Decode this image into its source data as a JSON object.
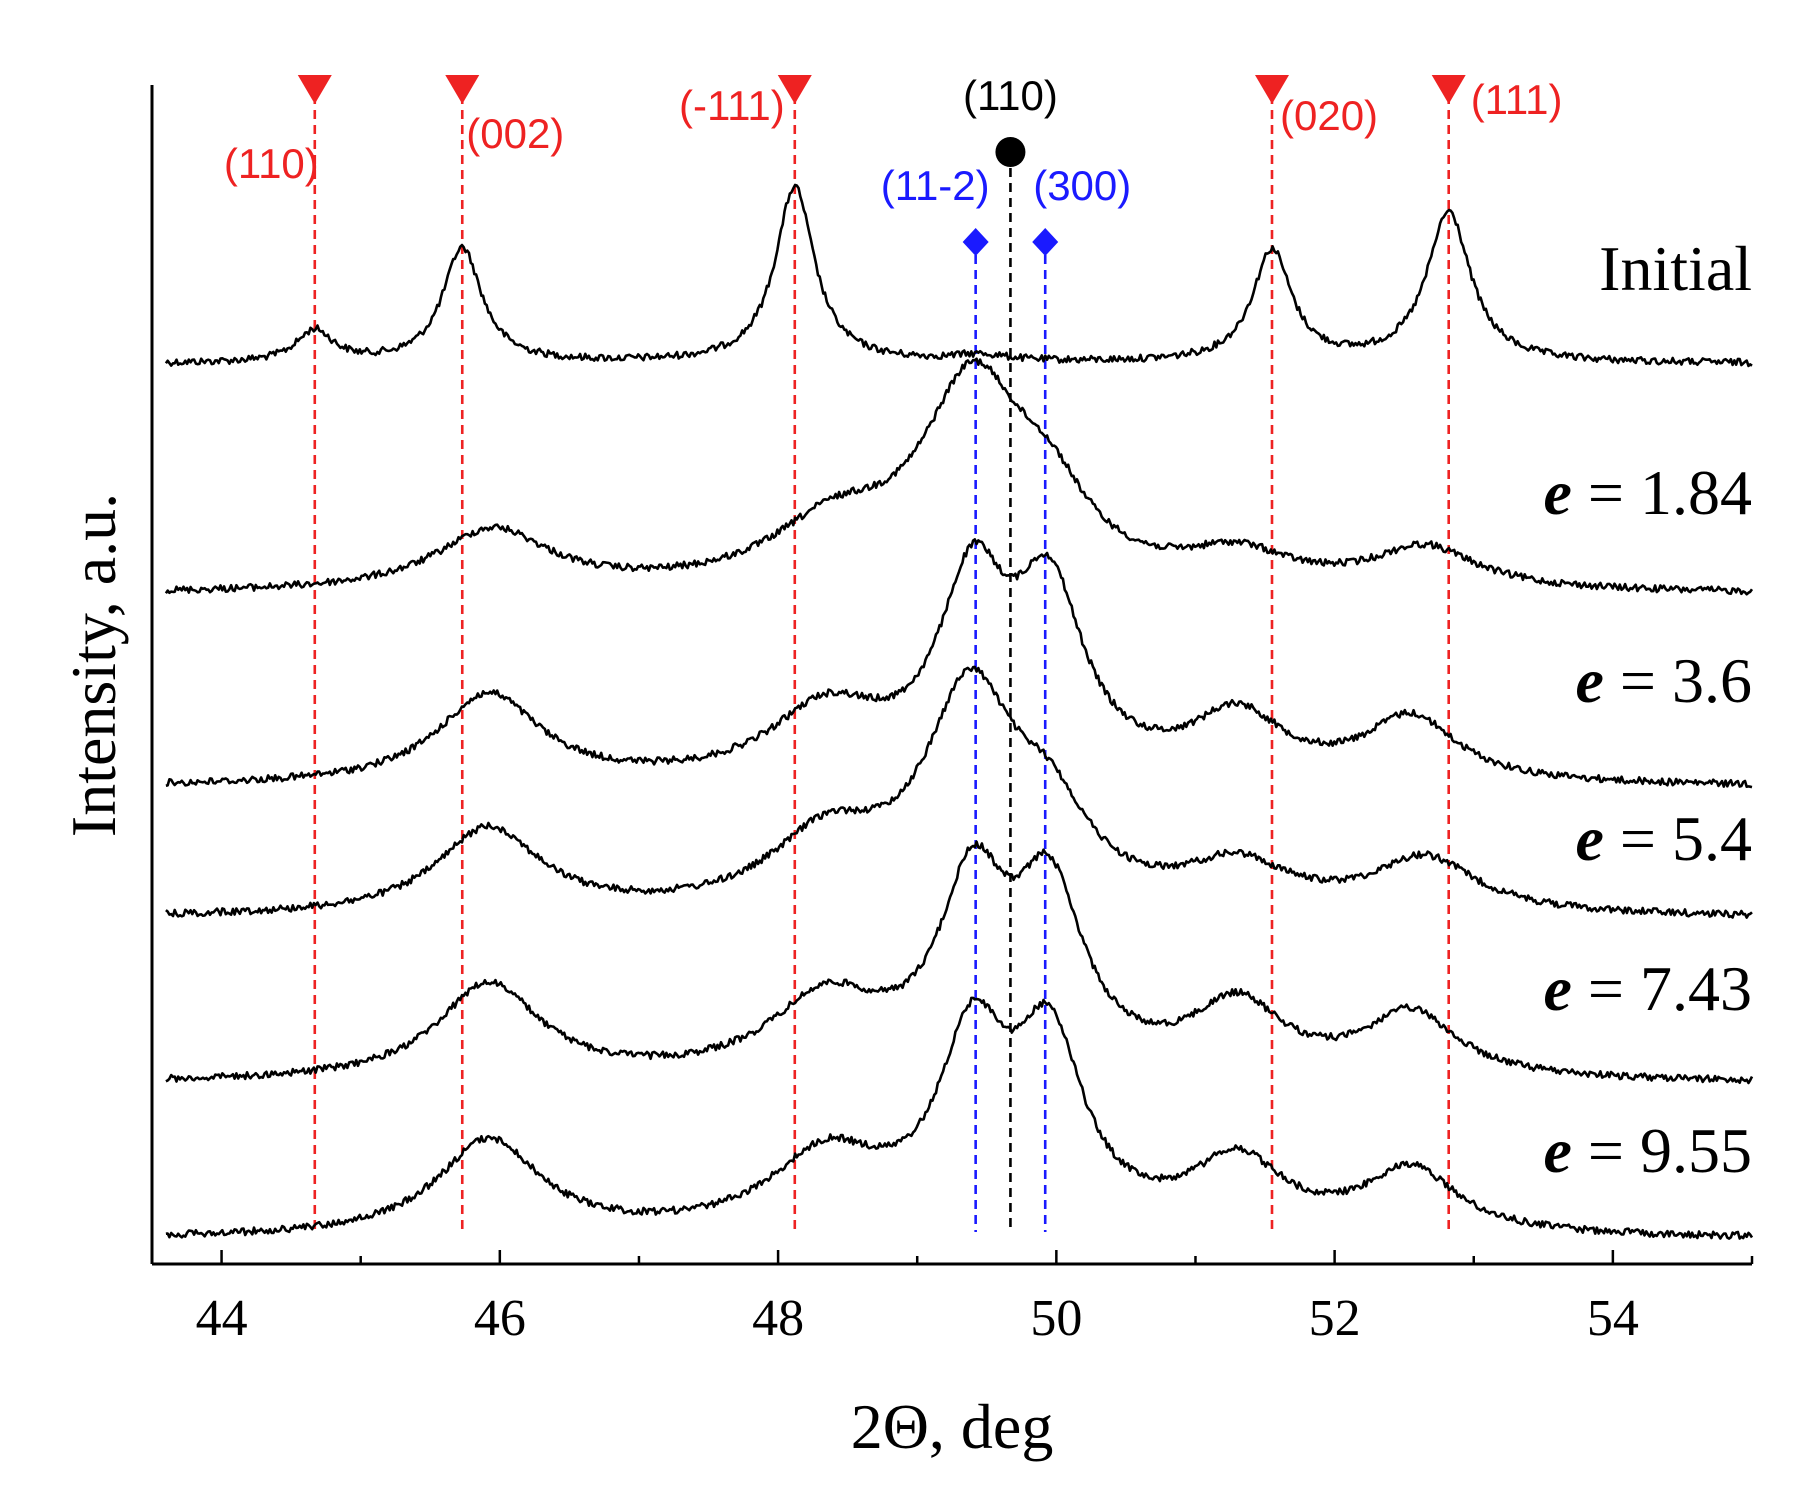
{
  "chart_data": {
    "type": "line",
    "xlabel": "2Θ, deg",
    "ylabel": "Intensity, a.u.",
    "xlim": [
      43.5,
      55.0
    ],
    "x_ticks": [
      44,
      46,
      48,
      50,
      52,
      54
    ],
    "minor_step": 1,
    "series": [
      {
        "name": "Initial",
        "name_parts": [
          "",
          "Initial"
        ],
        "baseline": 0,
        "profile": {
          "background": 0.0,
          "peaks": [
            {
              "pos": 44.67,
              "amp": 0.1,
              "width": 0.16
            },
            {
              "pos": 45.73,
              "amp": 0.36,
              "width": 0.17
            },
            {
              "pos": 48.12,
              "amp": 0.55,
              "width": 0.17
            },
            {
              "pos": 49.45,
              "amp": 0.02,
              "width": 0.25
            },
            {
              "pos": 51.55,
              "amp": 0.35,
              "width": 0.17
            },
            {
              "pos": 52.82,
              "amp": 0.47,
              "width": 0.19
            }
          ]
        }
      },
      {
        "name": "e = 1.84",
        "name_parts": [
          "e",
          " = 1.84"
        ],
        "baseline": 1,
        "profile": {
          "background": 0.0,
          "peaks": [
            {
              "pos": 45.95,
              "amp": 0.19,
              "width": 0.5
            },
            {
              "pos": 48.4,
              "amp": 0.18,
              "width": 0.55
            },
            {
              "pos": 49.4,
              "amp": 0.62,
              "width": 0.45
            },
            {
              "pos": 49.95,
              "amp": 0.2,
              "width": 0.35
            },
            {
              "pos": 51.3,
              "amp": 0.1,
              "width": 0.45
            },
            {
              "pos": 52.65,
              "amp": 0.13,
              "width": 0.45
            }
          ]
        }
      },
      {
        "name": "e = 3.6",
        "name_parts": [
          "e",
          " = 3.6"
        ],
        "baseline": 2,
        "profile": {
          "background": 0.0,
          "peaks": [
            {
              "pos": 45.92,
              "amp": 0.28,
              "width": 0.45
            },
            {
              "pos": 48.35,
              "amp": 0.22,
              "width": 0.5
            },
            {
              "pos": 49.4,
              "amp": 0.58,
              "width": 0.3
            },
            {
              "pos": 49.95,
              "amp": 0.55,
              "width": 0.3
            },
            {
              "pos": 51.3,
              "amp": 0.2,
              "width": 0.4
            },
            {
              "pos": 52.55,
              "amp": 0.2,
              "width": 0.4
            }
          ]
        }
      },
      {
        "name": "e = 5.4",
        "name_parts": [
          "e",
          " = 5.4"
        ],
        "baseline": 3,
        "profile": {
          "background": 0.0,
          "peaks": [
            {
              "pos": 45.92,
              "amp": 0.27,
              "width": 0.45
            },
            {
              "pos": 48.35,
              "amp": 0.22,
              "width": 0.5
            },
            {
              "pos": 49.38,
              "amp": 0.66,
              "width": 0.4
            },
            {
              "pos": 49.95,
              "amp": 0.24,
              "width": 0.35
            },
            {
              "pos": 51.3,
              "amp": 0.14,
              "width": 0.45
            },
            {
              "pos": 52.65,
              "amp": 0.17,
              "width": 0.45
            }
          ]
        }
      },
      {
        "name": "e = 7.43",
        "name_parts": [
          "e",
          " = 7.43"
        ],
        "baseline": 4,
        "profile": {
          "background": 0.0,
          "peaks": [
            {
              "pos": 45.92,
              "amp": 0.3,
              "width": 0.45
            },
            {
              "pos": 48.35,
              "amp": 0.24,
              "width": 0.5
            },
            {
              "pos": 49.4,
              "amp": 0.56,
              "width": 0.3
            },
            {
              "pos": 49.95,
              "amp": 0.54,
              "width": 0.3
            },
            {
              "pos": 51.3,
              "amp": 0.22,
              "width": 0.4
            },
            {
              "pos": 52.55,
              "amp": 0.2,
              "width": 0.4
            }
          ]
        }
      },
      {
        "name": "e = 9.55",
        "name_parts": [
          "e",
          " = 9.55"
        ],
        "baseline": 5,
        "profile": {
          "background": 0.0,
          "peaks": [
            {
              "pos": 45.92,
              "amp": 0.3,
              "width": 0.45
            },
            {
              "pos": 48.35,
              "amp": 0.24,
              "width": 0.5
            },
            {
              "pos": 49.4,
              "amp": 0.56,
              "width": 0.3
            },
            {
              "pos": 49.95,
              "amp": 0.56,
              "width": 0.3
            },
            {
              "pos": 51.3,
              "amp": 0.22,
              "width": 0.4
            },
            {
              "pos": 52.55,
              "amp": 0.2,
              "width": 0.4
            }
          ]
        }
      }
    ],
    "reference_peaks": [
      {
        "x": 44.67,
        "label": "(110)",
        "phase": "red"
      },
      {
        "x": 45.73,
        "label": "(002)",
        "phase": "red"
      },
      {
        "x": 48.12,
        "label": "(-111)",
        "phase": "red"
      },
      {
        "x": 51.55,
        "label": "(020)",
        "phase": "red"
      },
      {
        "x": 52.82,
        "label": "(111)",
        "phase": "red"
      },
      {
        "x": 49.42,
        "label": "(11-2)",
        "phase": "blue"
      },
      {
        "x": 49.92,
        "label": "(300)",
        "phase": "blue"
      },
      {
        "x": 49.67,
        "label": "(110)",
        "phase": "black"
      }
    ],
    "grid": false,
    "legend": "inline labels at right of each trace"
  },
  "colors": {
    "red": "#ee2222",
    "blue": "#1a1aff",
    "black": "#000000",
    "trace": "#000000"
  },
  "markers": {
    "red": "triangle-down",
    "blue": "diamond",
    "black": "circle"
  }
}
